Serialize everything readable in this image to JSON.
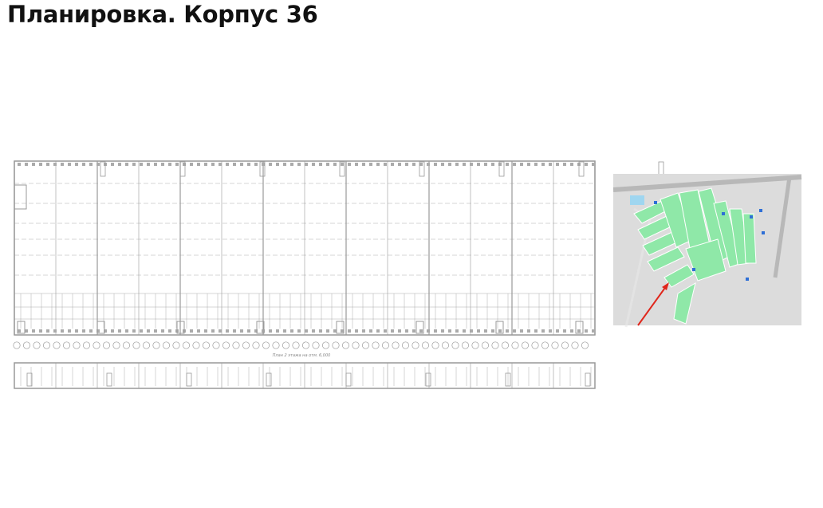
{
  "header": {
    "title": "Планировка. Корпус 36"
  },
  "plan": {
    "caption": "План 2 этажа на отм. 6,000"
  }
}
